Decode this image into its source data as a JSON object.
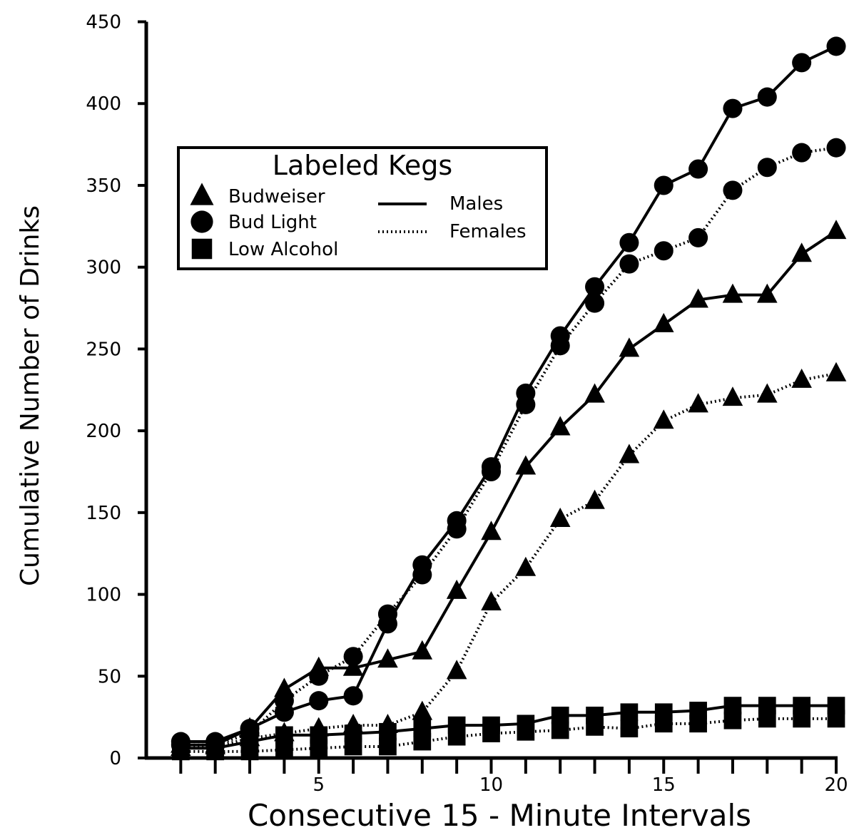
{
  "chart_data": {
    "type": "line",
    "title": "",
    "xlabel": "Consecutive 15 - Minute Intervals",
    "ylabel": "Cumulative Number of Drinks",
    "xlim": [
      0,
      20
    ],
    "ylim": [
      0,
      450
    ],
    "x_ticks": [
      1,
      2,
      3,
      4,
      5,
      6,
      7,
      8,
      9,
      10,
      11,
      12,
      13,
      14,
      15,
      16,
      17,
      18,
      19,
      20
    ],
    "x_tick_labels": [
      {
        "value": 5,
        "label": "5"
      },
      {
        "value": 10,
        "label": "10"
      },
      {
        "value": 15,
        "label": "15"
      },
      {
        "value": 20,
        "label": "20"
      }
    ],
    "y_ticks": [
      0,
      50,
      100,
      150,
      200,
      250,
      300,
      350,
      400,
      450
    ],
    "y_tick_labels": [
      "0",
      "50",
      "100",
      "150",
      "200",
      "250",
      "300",
      "350",
      "400",
      "450"
    ],
    "grid": false,
    "legend": {
      "title": "Labeled Kegs",
      "position": "upper-left",
      "markers": [
        {
          "name": "Budweiser",
          "marker": "triangle"
        },
        {
          "name": "Bud Light",
          "marker": "circle"
        },
        {
          "name": "Low Alcohol",
          "marker": "square"
        }
      ],
      "lines": [
        {
          "name": "Males",
          "style": "solid"
        },
        {
          "name": "Females",
          "style": "dotted"
        }
      ]
    },
    "series": [
      {
        "name": "Budweiser - Males",
        "marker": "triangle",
        "line": "solid",
        "x": [
          1,
          2,
          3,
          4,
          5,
          6,
          7,
          8,
          9,
          10,
          11,
          12,
          13,
          14,
          15,
          16,
          17,
          18,
          19,
          20
        ],
        "values": [
          8,
          8,
          18,
          42,
          55,
          55,
          60,
          65,
          102,
          138,
          178,
          202,
          222,
          250,
          265,
          280,
          283,
          283,
          308,
          322
        ]
      },
      {
        "name": "Budweiser - Females",
        "marker": "triangle",
        "line": "dotted",
        "x": [
          1,
          2,
          3,
          4,
          5,
          6,
          7,
          8,
          9,
          10,
          11,
          12,
          13,
          14,
          15,
          16,
          17,
          18,
          19,
          20
        ],
        "values": [
          6,
          7,
          12,
          15,
          18,
          20,
          20,
          28,
          53,
          95,
          116,
          146,
          157,
          185,
          206,
          216,
          220,
          222,
          231,
          235
        ]
      },
      {
        "name": "Bud Light - Males",
        "marker": "circle",
        "line": "solid",
        "x": [
          1,
          2,
          3,
          4,
          5,
          6,
          7,
          8,
          9,
          10,
          11,
          12,
          13,
          14,
          15,
          16,
          17,
          18,
          19,
          20
        ],
        "values": [
          10,
          10,
          18,
          28,
          35,
          38,
          82,
          118,
          145,
          178,
          223,
          258,
          288,
          315,
          350,
          360,
          397,
          404,
          425,
          435
        ]
      },
      {
        "name": "Bud Light - Females",
        "marker": "circle",
        "line": "dotted",
        "x": [
          1,
          2,
          3,
          4,
          5,
          6,
          7,
          8,
          9,
          10,
          11,
          12,
          13,
          14,
          15,
          16,
          17,
          18,
          19,
          20
        ],
        "values": [
          8,
          8,
          15,
          35,
          50,
          62,
          88,
          112,
          140,
          175,
          216,
          252,
          278,
          302,
          310,
          318,
          347,
          361,
          370,
          373
        ]
      },
      {
        "name": "Low Alcohol - Males",
        "marker": "square",
        "line": "solid",
        "x": [
          1,
          2,
          3,
          4,
          5,
          6,
          7,
          8,
          9,
          10,
          11,
          12,
          13,
          14,
          15,
          16,
          17,
          18,
          19,
          20
        ],
        "values": [
          6,
          6,
          10,
          14,
          14,
          15,
          16,
          18,
          20,
          20,
          21,
          26,
          26,
          28,
          28,
          29,
          32,
          32,
          32,
          32
        ]
      },
      {
        "name": "Low Alcohol - Females",
        "marker": "square",
        "line": "dotted",
        "x": [
          1,
          2,
          3,
          4,
          5,
          6,
          7,
          8,
          9,
          10,
          11,
          12,
          13,
          14,
          15,
          16,
          17,
          18,
          19,
          20
        ],
        "values": [
          4,
          4,
          4,
          5,
          6,
          7,
          7,
          10,
          13,
          15,
          16,
          17,
          19,
          18,
          21,
          21,
          23,
          24,
          24,
          24
        ]
      }
    ]
  }
}
